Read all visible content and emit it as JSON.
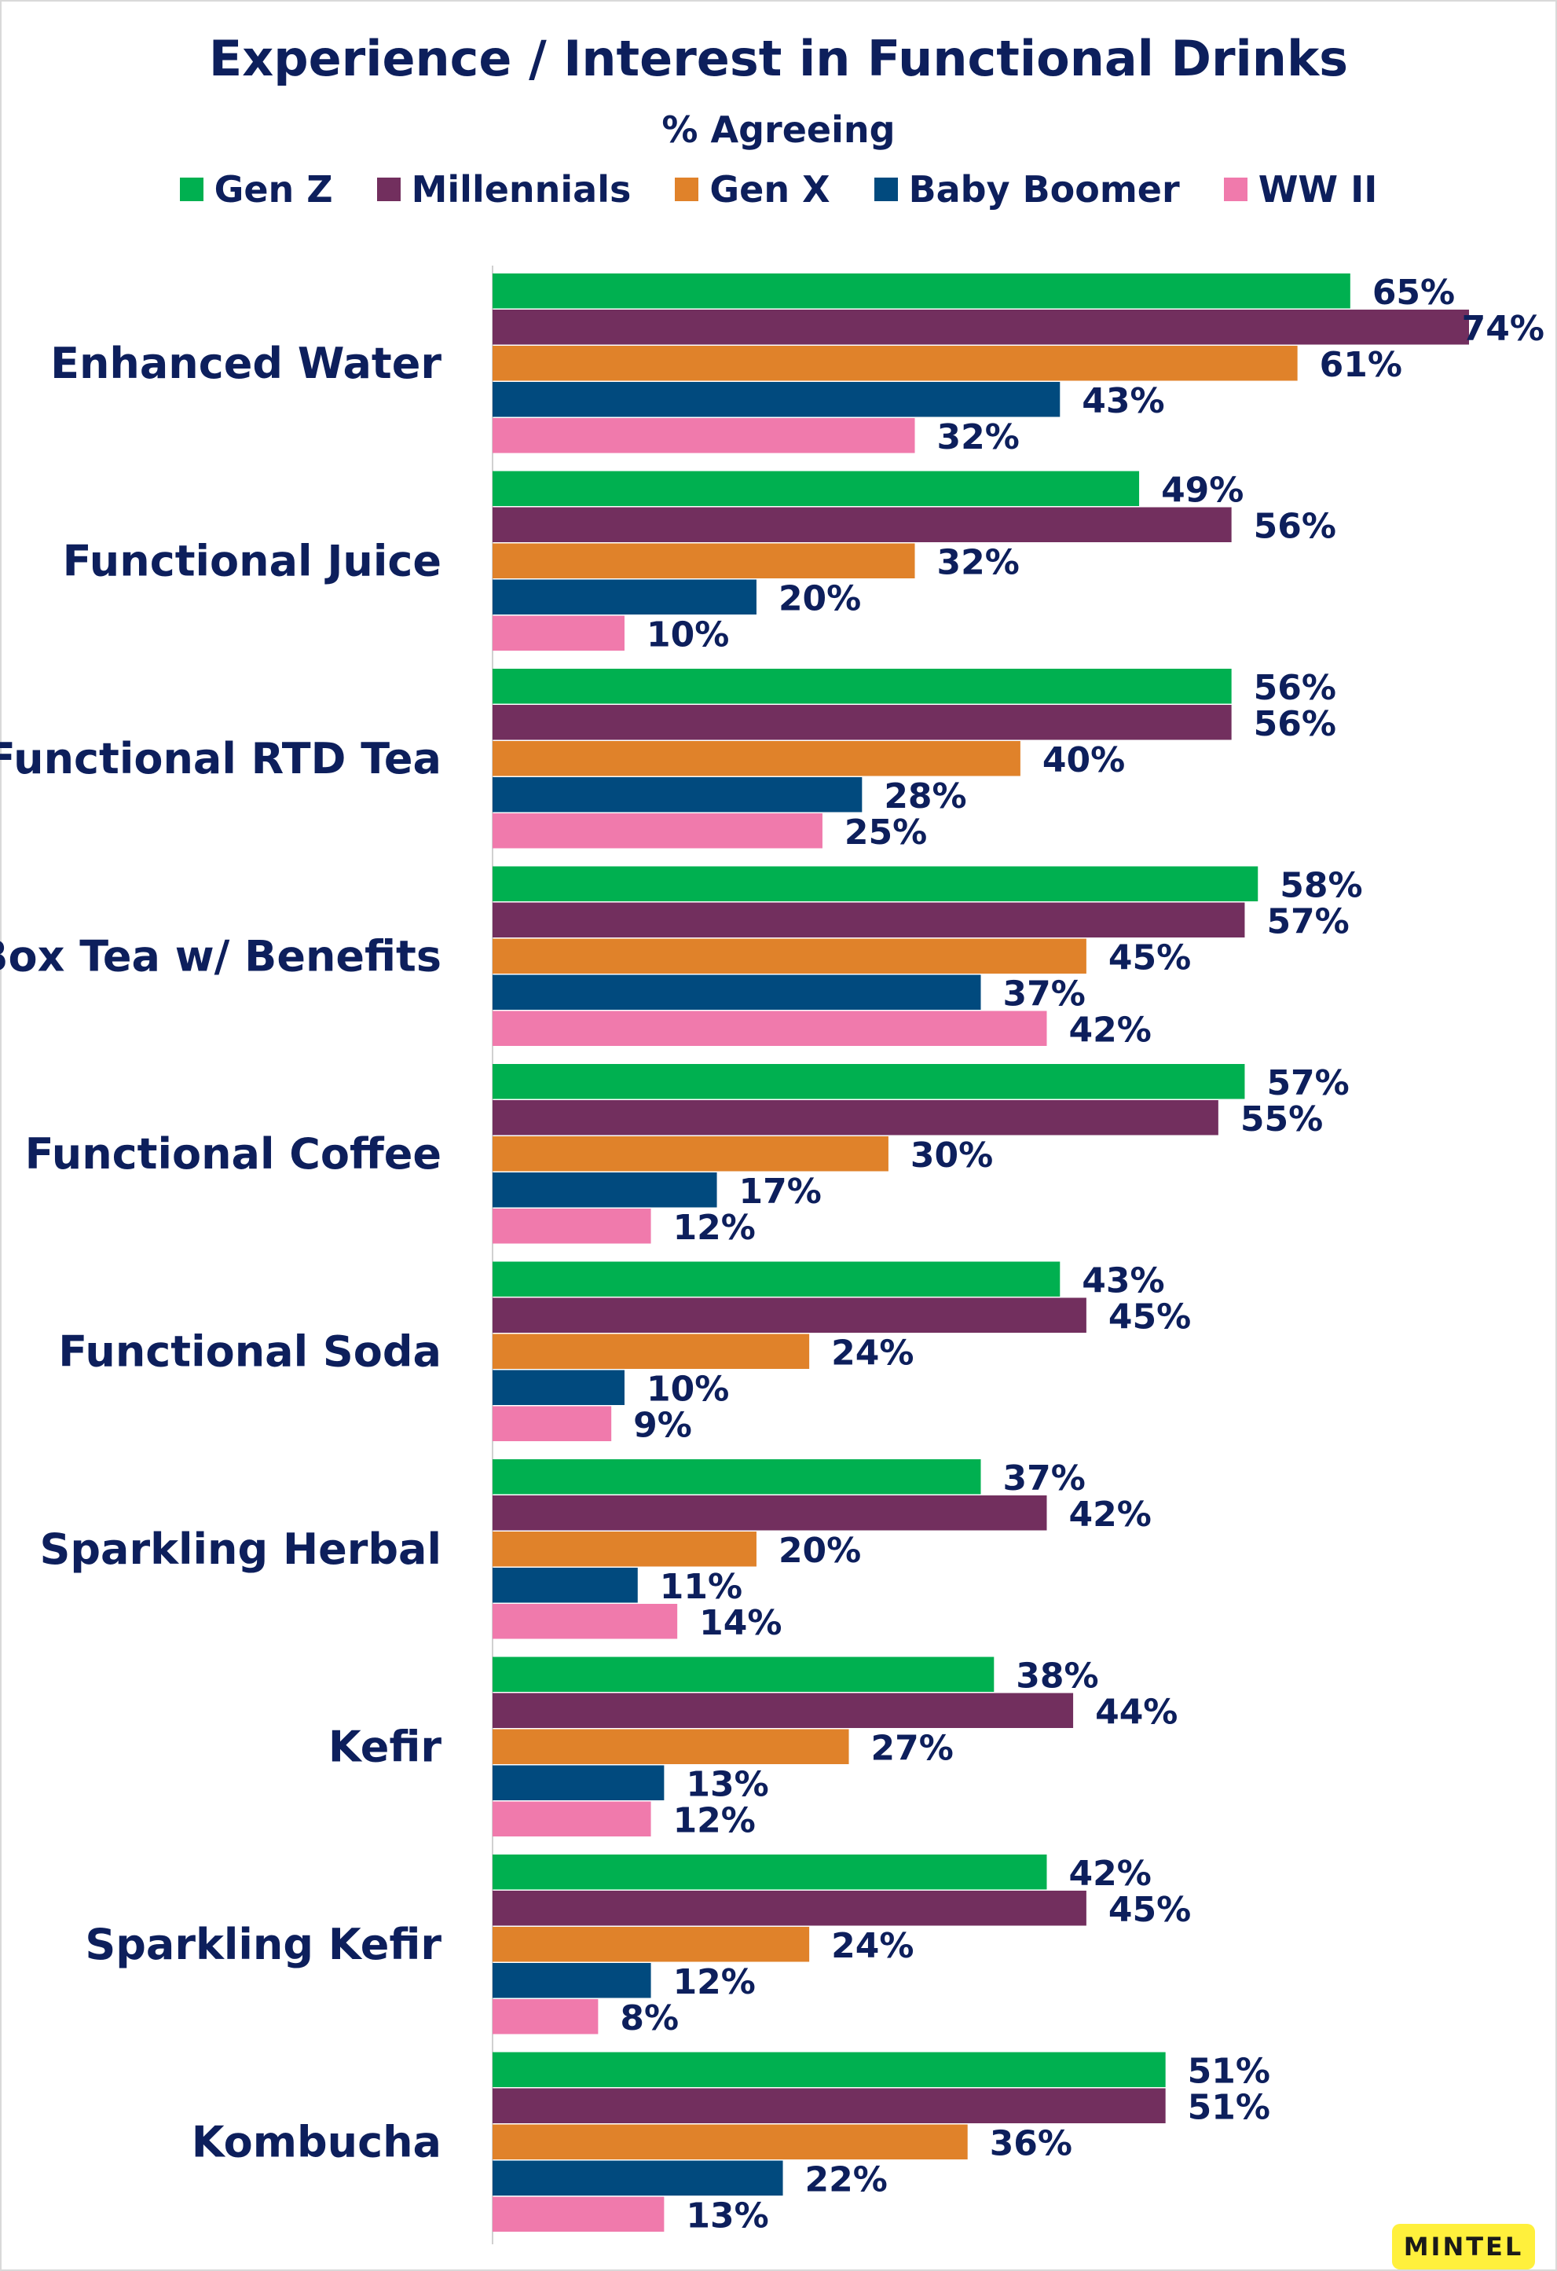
{
  "chart_data": {
    "type": "bar",
    "orientation": "horizontal",
    "title": "Experience / Interest in Functional Drinks",
    "subtitle": "% Agreeing",
    "legend_placement": "top",
    "grid": false,
    "xlim": [
      0,
      74
    ],
    "categories": [
      "Enhanced Water",
      "Functional Juice",
      "Functional RTD Tea",
      "Box Tea w/ Benefits",
      "Functional Coffee",
      "Functional Soda",
      "Sparkling Herbal",
      "Kefir",
      "Sparkling Kefir",
      "Kombucha"
    ],
    "series": [
      {
        "name": "Gen Z",
        "color": "#00b050",
        "values": [
          65,
          49,
          56,
          58,
          57,
          43,
          37,
          38,
          42,
          51
        ],
        "labels": [
          "65%",
          "49%",
          "56%",
          "58%",
          "57%",
          "43%",
          "37%",
          "38%",
          "42%",
          "51%"
        ]
      },
      {
        "name": "Millennials",
        "color": "#722f5e",
        "values": [
          74,
          56,
          56,
          57,
          55,
          45,
          42,
          44,
          45,
          51
        ],
        "labels": [
          "74%",
          "56%",
          "56%",
          "57%",
          "55%",
          "45%",
          "42%",
          "44%",
          "45%",
          "51%"
        ]
      },
      {
        "name": "Gen X",
        "color": "#e0822a",
        "values": [
          61,
          32,
          40,
          45,
          30,
          24,
          20,
          27,
          24,
          36
        ],
        "labels": [
          "61%",
          "32%",
          "40%",
          "45%",
          "30%",
          "24%",
          "20%",
          "27%",
          "24%",
          "36%"
        ]
      },
      {
        "name": "Baby Boomer",
        "color": "#014a7e",
        "values": [
          43,
          20,
          28,
          37,
          17,
          10,
          11,
          13,
          12,
          22
        ],
        "labels": [
          "43%",
          "20%",
          "28%",
          "37%",
          "17%",
          "10%",
          "11%",
          "13%",
          "12%",
          "22%"
        ]
      },
      {
        "name": "WW II",
        "color": "#f07aac",
        "values": [
          32,
          10,
          25,
          42,
          12,
          9,
          14,
          12,
          8,
          13
        ],
        "labels": [
          "32%",
          "10%",
          "25%",
          "42%",
          "12%",
          "9%",
          "14%",
          "12%",
          "8%",
          "13%"
        ]
      }
    ]
  },
  "branding": {
    "logo_text": "MINTEL",
    "logo_color": "#fff03c"
  }
}
